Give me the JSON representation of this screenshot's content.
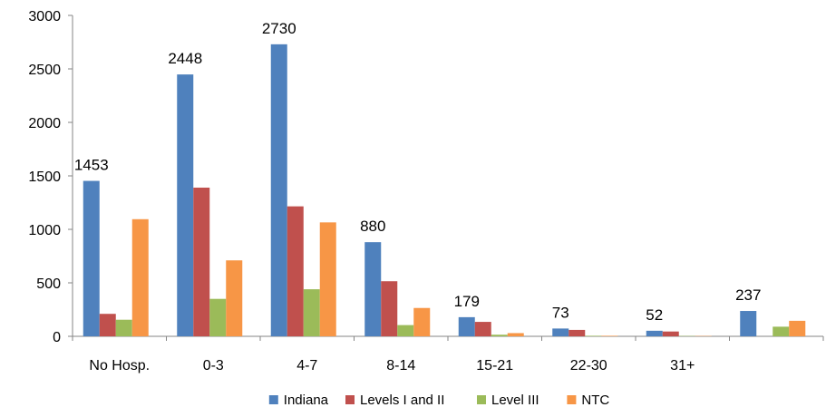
{
  "chart_data": {
    "type": "bar",
    "title": "",
    "xlabel": "",
    "ylabel": "",
    "ylim": [
      0,
      3000
    ],
    "yticks": [
      0,
      500,
      1000,
      1500,
      2000,
      2500,
      3000
    ],
    "grid": false,
    "legend_position": "bottom",
    "categories": [
      "No Hosp.",
      "0-3",
      "4-7",
      "8-14",
      "15-21",
      "22-30",
      "31+",
      ""
    ],
    "series": [
      {
        "name": "Indiana",
        "color": "#4F81BD",
        "values": [
          1453,
          2448,
          2730,
          880,
          179,
          73,
          52,
          237
        ]
      },
      {
        "name": "Levels I and II",
        "color": "#C0504D",
        "values": [
          210,
          1390,
          1215,
          515,
          135,
          60,
          45,
          0
        ]
      },
      {
        "name": "Level III",
        "color": "#9BBB59",
        "values": [
          155,
          350,
          440,
          105,
          15,
          5,
          3,
          90
        ]
      },
      {
        "name": "NTC",
        "color": "#F79646",
        "values": [
          1095,
          710,
          1065,
          265,
          30,
          5,
          3,
          145
        ]
      }
    ],
    "data_labels": [
      "1453",
      "2448",
      "2730",
      "880",
      "179",
      "73",
      "52",
      "237"
    ]
  }
}
